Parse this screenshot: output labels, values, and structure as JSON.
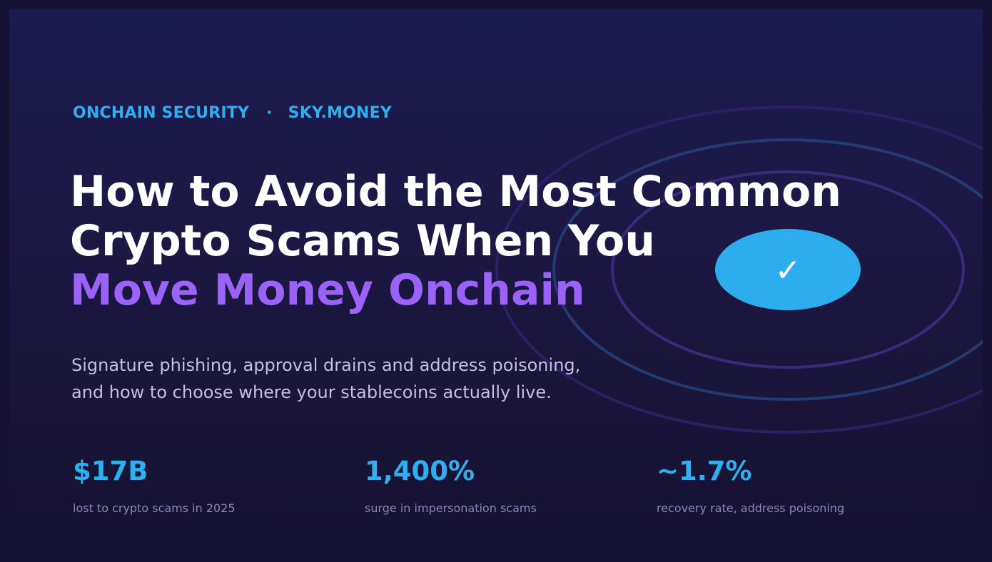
{
  "eyebrow": {
    "category": "ONCHAIN SECURITY",
    "separator": "·",
    "site": "SKY.MONEY"
  },
  "headline": {
    "line1": "How to Avoid the Most Common",
    "line2": "Crypto Scams When You",
    "line3_accent": "Move Money Onchain"
  },
  "subtitle": {
    "line1": "Signature phishing, approval drains and address poisoning,",
    "line2": "and how to choose where your stablecoins actually live."
  },
  "stats": [
    {
      "value": "$17B",
      "label": "lost to crypto scams in 2025"
    },
    {
      "value": "1,400%",
      "label": "surge in impersonation scams"
    },
    {
      "value": "~1.7%",
      "label": "recovery rate, address poisoning"
    }
  ],
  "badge": {
    "icon": "checkmark-icon",
    "glyph": "✓"
  },
  "colors": {
    "accent_blue": "#2eb0f0",
    "accent_purple": "#9a62f7",
    "background": "#1b1a45",
    "text": "#ffffff",
    "muted": "#8c86b8"
  }
}
